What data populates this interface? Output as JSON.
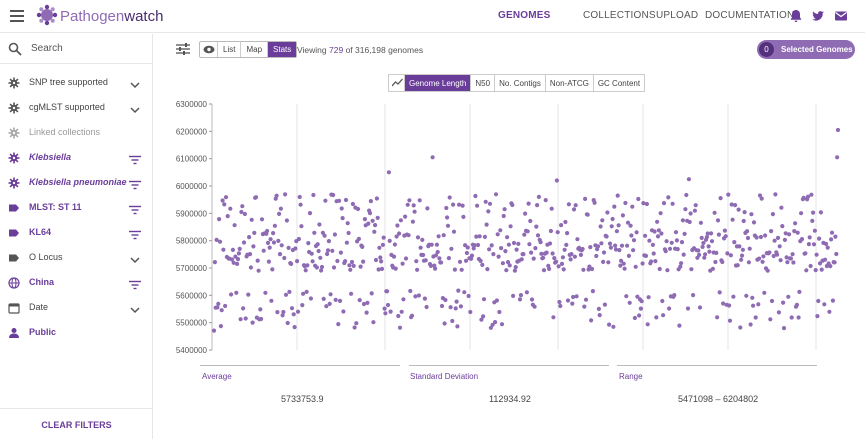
{
  "header": {
    "brand": "Pathogenwatch",
    "nav": [
      "GENOMES",
      "COLLECTIONS",
      "UPLOAD",
      "DOCUMENTATION"
    ],
    "active_nav": "GENOMES",
    "accent": "#6a3d9a"
  },
  "sidebar": {
    "search_placeholder": "Search",
    "filters": [
      {
        "label": "SNP tree supported",
        "icon": "gear-icon",
        "control": "chevron-down-icon",
        "style": "normal"
      },
      {
        "label": "cgMLST supported",
        "icon": "gear-icon",
        "control": "chevron-down-icon",
        "style": "normal"
      },
      {
        "label": "Linked collections",
        "icon": "gear-icon",
        "control": "",
        "style": "dim"
      },
      {
        "label": "Klebsiella",
        "icon": "gear-icon",
        "control": "filter-list-icon",
        "style": "active-italic"
      },
      {
        "label": "Klebsiella pneumoniae",
        "icon": "gear-icon",
        "control": "filter-list-icon",
        "style": "active-italic"
      },
      {
        "label": "MLST: ST 11",
        "icon": "label-icon",
        "control": "filter-list-icon",
        "style": "active"
      },
      {
        "label": "KL64",
        "icon": "label-icon",
        "control": "filter-list-icon",
        "style": "active"
      },
      {
        "label": "O Locus",
        "icon": "label-icon",
        "control": "chevron-down-icon",
        "style": "normal"
      },
      {
        "label": "China",
        "icon": "globe-icon",
        "control": "filter-list-icon",
        "style": "active"
      },
      {
        "label": "Date",
        "icon": "calendar-icon",
        "control": "chevron-down-icon",
        "style": "normal"
      },
      {
        "label": "Public",
        "icon": "person-icon",
        "control": "",
        "style": "active"
      }
    ],
    "clear_label": "CLEAR FILTERS"
  },
  "toolbar": {
    "views": [
      "List",
      "Map",
      "Stats"
    ],
    "active_view": "Stats",
    "viewing_prefix": "Viewing",
    "viewing_count": "729",
    "viewing_suffix": "of 316,198 genomes",
    "selected_count": "0",
    "selected_label": "Selected Genomes"
  },
  "metrics": {
    "options": [
      "Genome Length",
      "N50",
      "No. Contigs",
      "Non-ATCG",
      "GC Content"
    ],
    "active": "Genome Length"
  },
  "stats": {
    "average_label": "Average",
    "average_value": "5733753.9",
    "sd_label": "Standard Deviation",
    "sd_value": "112934.92",
    "range_label": "Range",
    "range_value": "5471098 – 6204802"
  },
  "chart_data": {
    "type": "scatter",
    "title": "",
    "xlabel": "",
    "ylabel": "",
    "ylim": [
      5400000,
      6300000
    ],
    "yticks": [
      "6300000",
      "6200000",
      "6100000",
      "6000000",
      "5900000",
      "5800000",
      "5700000",
      "5600000",
      "5500000",
      "5400000"
    ],
    "point_color": "#8e6bb3",
    "n_points": 729,
    "y_min": 5471098,
    "y_max": 6204802,
    "y_mean": 5733753.9
  }
}
